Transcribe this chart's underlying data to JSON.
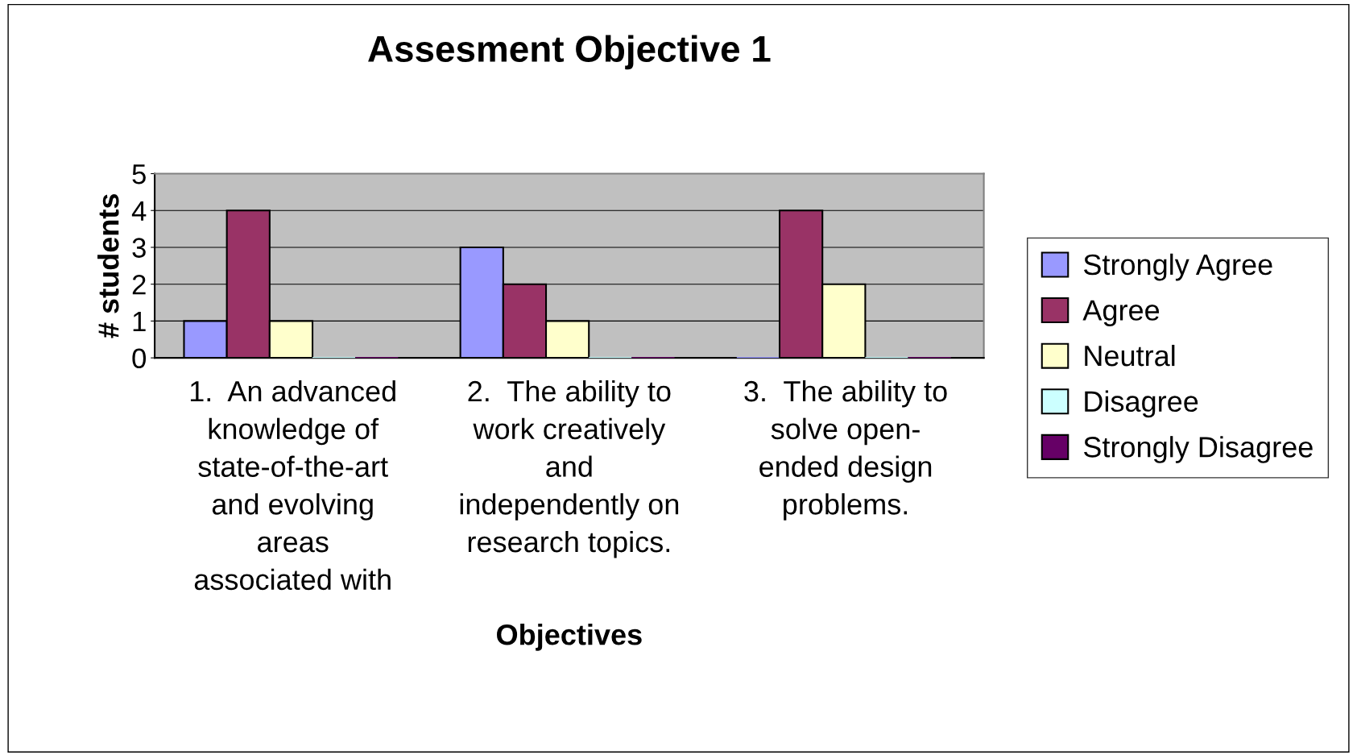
{
  "chart_data": {
    "type": "bar",
    "title": "Assesment Objective 1",
    "xlabel": "Objectives",
    "ylabel": "# students",
    "categories": [
      "1.  An advanced\nknowledge of\nstate-of-the-art\nand evolving\nareas\nassociated with",
      "2.  The ability to\nwork creatively\nand\nindependently on\nresearch topics.",
      "3.  The ability to\nsolve open-\nended design\nproblems."
    ],
    "series": [
      {
        "name": "Strongly Agree",
        "color": "#9999ff",
        "values": [
          1,
          3,
          0
        ]
      },
      {
        "name": "Agree",
        "color": "#993366",
        "values": [
          4,
          2,
          4
        ]
      },
      {
        "name": "Neutral",
        "color": "#ffffcc",
        "values": [
          1,
          1,
          2
        ]
      },
      {
        "name": "Disagree",
        "color": "#ccffff",
        "values": [
          0,
          0,
          0
        ]
      },
      {
        "name": "Strongly Disagree",
        "color": "#660066",
        "values": [
          0,
          0,
          0
        ]
      }
    ],
    "ylim": [
      0,
      5
    ],
    "yticks": [
      0,
      1,
      2,
      3,
      4,
      5
    ],
    "grid": "y",
    "legend": "right"
  }
}
